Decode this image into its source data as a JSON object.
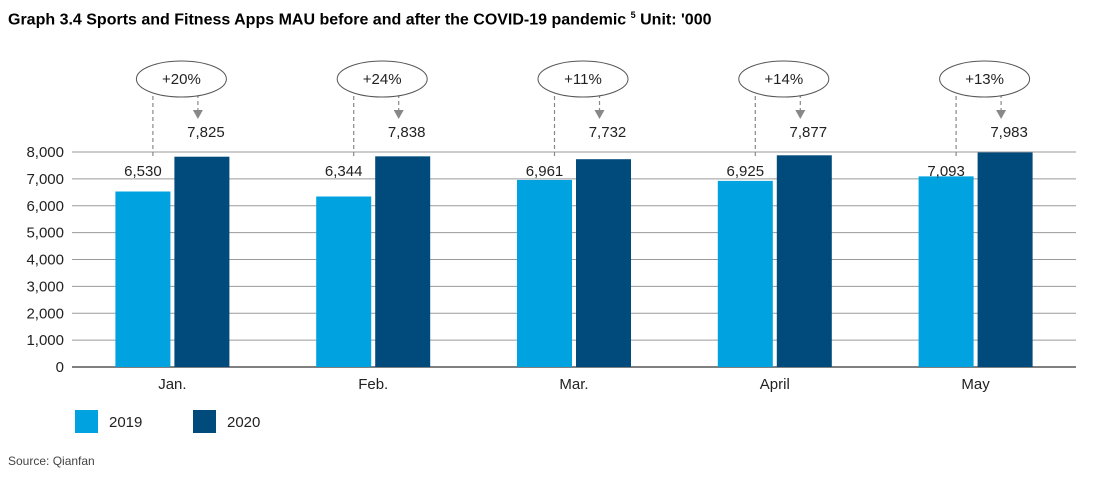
{
  "title": "Graph 3.4 Sports and Fitness Apps MAU before and after the COVID-19 pandemic",
  "title_footnote": "5",
  "title_unit": "Unit: '000",
  "source": "Source: Qianfan",
  "colors": {
    "y2019": "#00a3e0",
    "y2020": "#004a7c",
    "grid": "#9a9a9a",
    "axis": "#000000",
    "arrow": "#888888"
  },
  "chart_data": {
    "type": "bar",
    "categories": [
      "Jan.",
      "Feb.",
      "Mar.",
      "April",
      "May"
    ],
    "series": [
      {
        "name": "2019",
        "values": [
          6530,
          6344,
          6961,
          6925,
          7093
        ]
      },
      {
        "name": "2020",
        "values": [
          7825,
          7838,
          7732,
          7877,
          7983
        ]
      }
    ],
    "value_labels_2019": [
      "6,530",
      "6,344",
      "6,961",
      "6,925",
      "7,093"
    ],
    "value_labels_2020": [
      "7,825",
      "7,838",
      "7,732",
      "7,877",
      "7,983"
    ],
    "growth_labels": [
      "+20%",
      "+24%",
      "+11%",
      "+14%",
      "+13%"
    ],
    "ylim": [
      0,
      8000
    ],
    "yticks": [
      0,
      1000,
      2000,
      3000,
      4000,
      5000,
      6000,
      7000,
      8000
    ],
    "ytick_labels": [
      "0",
      "1,000",
      "2,000",
      "3,000",
      "4,000",
      "5,000",
      "6,000",
      "7,000",
      "8,000"
    ],
    "grid": true,
    "legend": "bottom-left"
  }
}
